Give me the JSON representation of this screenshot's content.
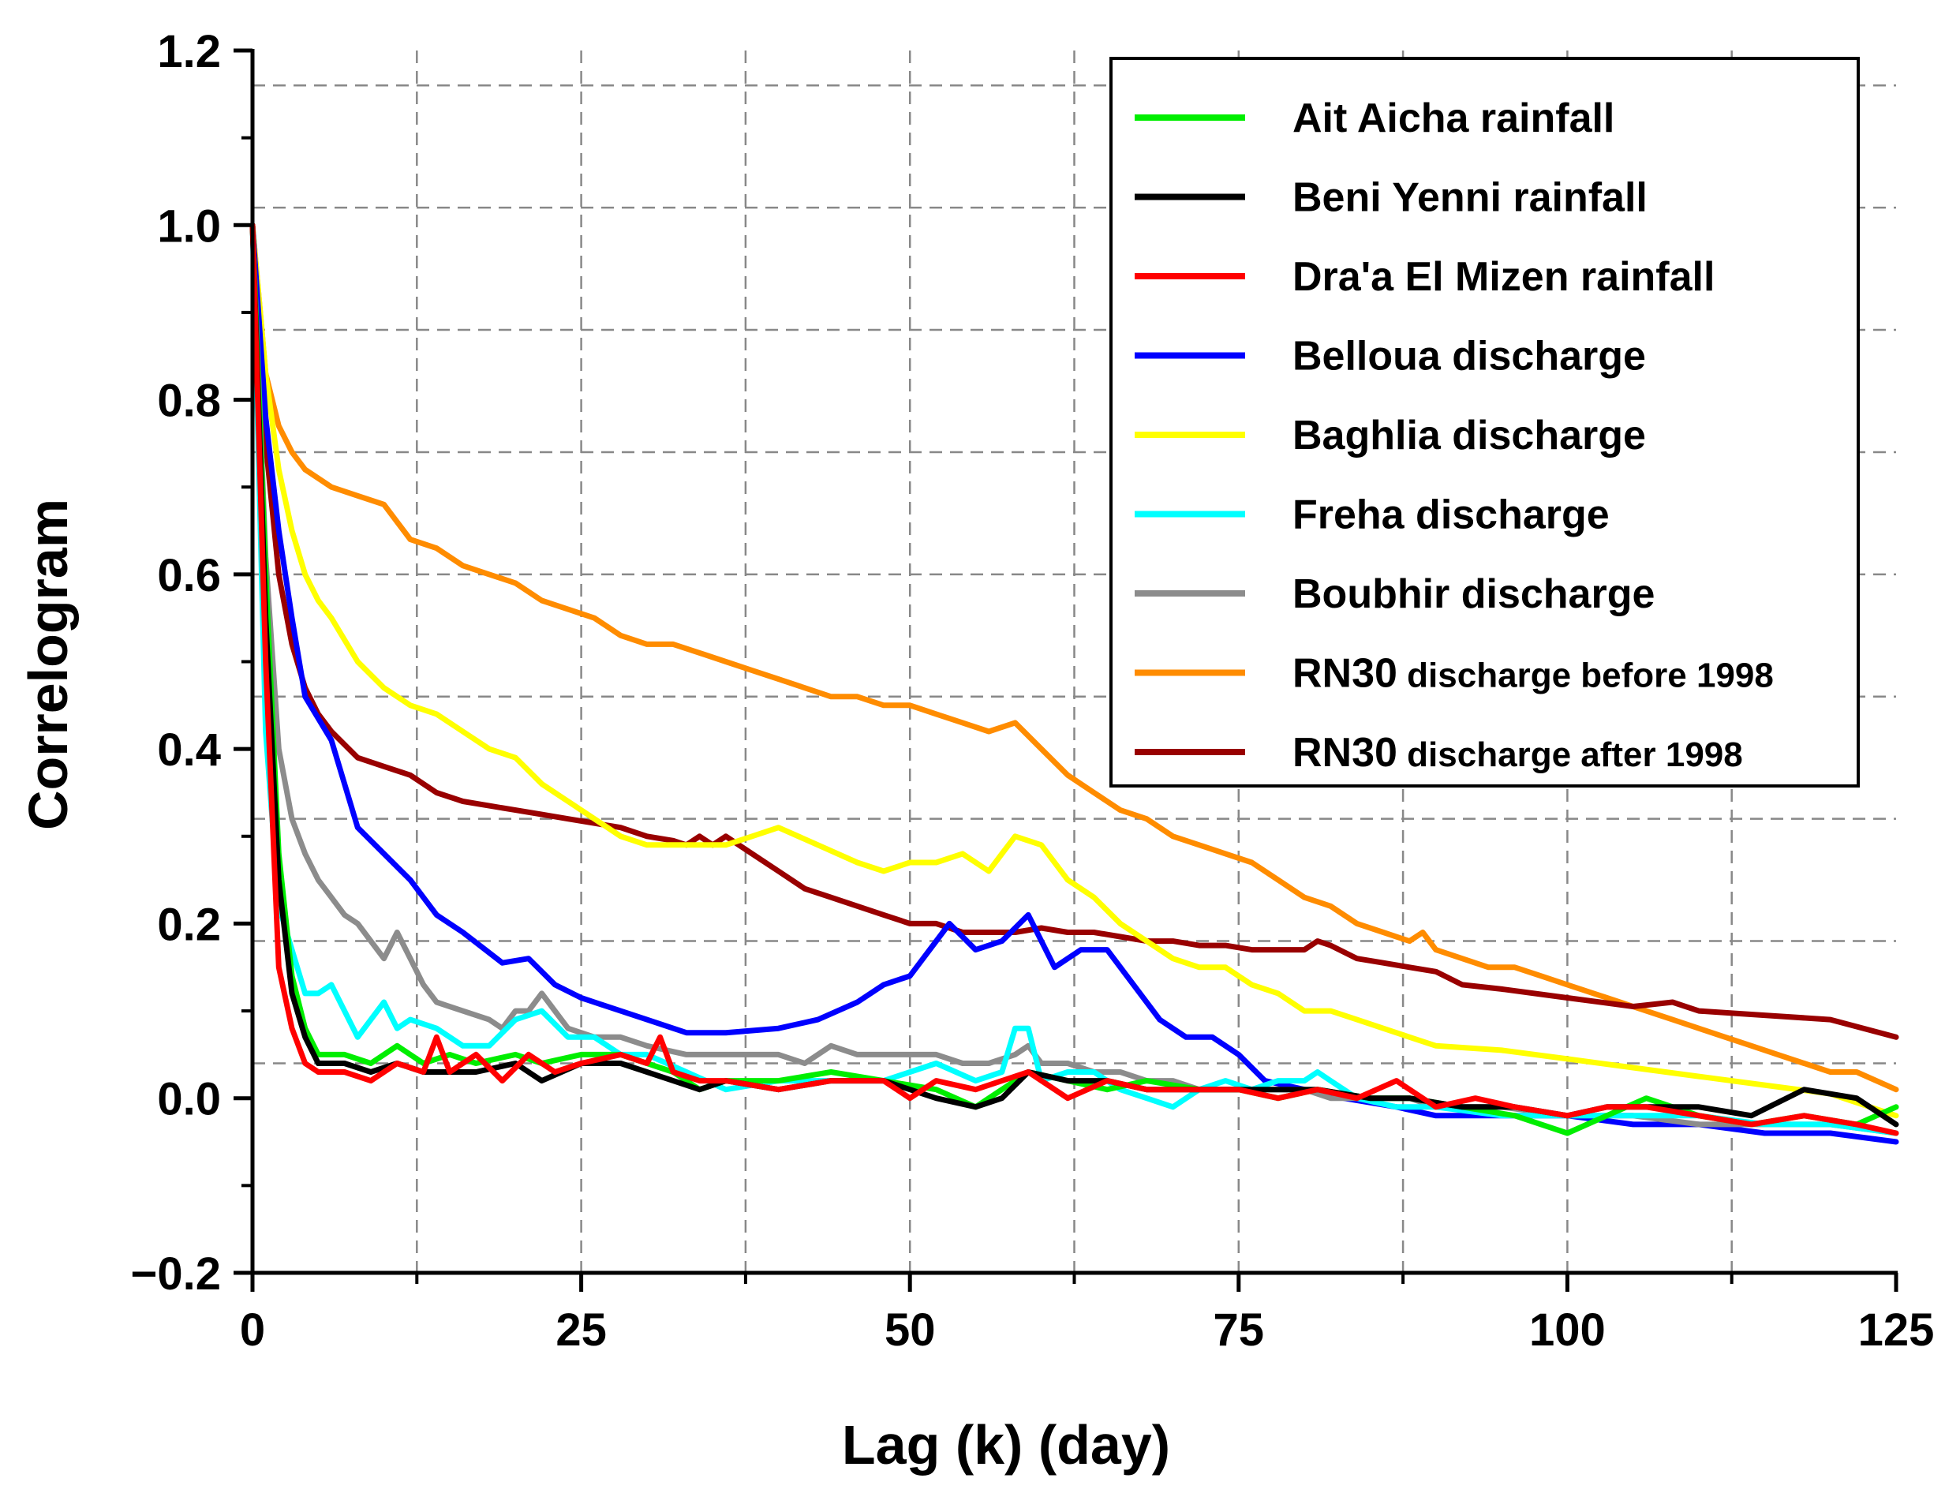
{
  "chart_data": {
    "type": "line",
    "title": "",
    "xlabel": "Lag (k) (day)",
    "ylabel": "Correlogram",
    "xlim": [
      0,
      125
    ],
    "ylim": [
      -0.2,
      1.2
    ],
    "xticks": [
      0,
      25,
      50,
      75,
      100,
      125
    ],
    "xtick_labels": [
      "0",
      "25",
      "50",
      "75",
      "100",
      "125"
    ],
    "yticks": [
      -0.2,
      0.0,
      0.2,
      0.4,
      0.6,
      0.8,
      1.0,
      1.2
    ],
    "ytick_labels": [
      "−0.2",
      "0.0",
      "0.2",
      "0.4",
      "0.6",
      "0.8",
      "1.0",
      "1.2"
    ],
    "grid": true,
    "legend_position": "top-right",
    "series": [
      {
        "name": "Ait Aicha rainfall",
        "legend_main": "Ait Aicha rainfall",
        "legend_small": "",
        "color": "#00ee00",
        "x": [
          0,
          1,
          2,
          3,
          4,
          5,
          7,
          9,
          11,
          13,
          15,
          17,
          20,
          22,
          25,
          28,
          30,
          32,
          34,
          36,
          40,
          44,
          48,
          52,
          55,
          57,
          59,
          62,
          65,
          68,
          72,
          75,
          78,
          81,
          85,
          88,
          92,
          96,
          100,
          103,
          106,
          110,
          114,
          118,
          122,
          125
        ],
        "values": [
          1.0,
          0.6,
          0.28,
          0.14,
          0.08,
          0.05,
          0.05,
          0.04,
          0.06,
          0.04,
          0.05,
          0.04,
          0.05,
          0.04,
          0.05,
          0.05,
          0.04,
          0.03,
          0.01,
          0.02,
          0.02,
          0.03,
          0.02,
          0.01,
          -0.01,
          0.01,
          0.03,
          0.02,
          0.01,
          0.02,
          0.01,
          0.01,
          0.0,
          0.01,
          0.0,
          0.0,
          -0.01,
          -0.02,
          -0.04,
          -0.02,
          0.0,
          -0.02,
          -0.03,
          -0.02,
          -0.03,
          -0.01
        ]
      },
      {
        "name": "Beni Yenni rainfall",
        "legend_main": "Beni Yenni rainfall",
        "legend_small": "",
        "color": "#000000",
        "x": [
          0,
          1,
          2,
          3,
          4,
          5,
          7,
          9,
          11,
          13,
          15,
          17,
          20,
          22,
          25,
          28,
          30,
          32,
          34,
          36,
          40,
          44,
          48,
          52,
          55,
          57,
          59,
          62,
          65,
          68,
          72,
          75,
          78,
          81,
          85,
          88,
          92,
          96,
          100,
          103,
          106,
          110,
          114,
          118,
          122,
          125
        ],
        "values": [
          1.0,
          0.55,
          0.25,
          0.12,
          0.07,
          0.04,
          0.04,
          0.03,
          0.04,
          0.03,
          0.03,
          0.03,
          0.04,
          0.02,
          0.04,
          0.04,
          0.03,
          0.02,
          0.01,
          0.02,
          0.01,
          0.02,
          0.02,
          0.0,
          -0.01,
          0.0,
          0.03,
          0.02,
          0.02,
          0.01,
          0.01,
          0.01,
          0.01,
          0.01,
          0.0,
          0.0,
          -0.01,
          -0.01,
          -0.02,
          -0.01,
          -0.01,
          -0.01,
          -0.02,
          0.01,
          0.0,
          -0.03
        ]
      },
      {
        "name": "Dra'a El Mizen rainfall",
        "legend_main": "Dra'a El Mizen rainfall",
        "legend_small": "",
        "color": "#ff0000",
        "x": [
          0,
          1,
          2,
          3,
          4,
          5,
          7,
          9,
          11,
          13,
          14,
          15,
          17,
          19,
          21,
          23,
          25,
          28,
          30,
          31,
          32,
          34,
          36,
          40,
          44,
          48,
          50,
          52,
          55,
          57,
          59,
          62,
          65,
          68,
          72,
          75,
          78,
          81,
          84,
          87,
          90,
          93,
          96,
          100,
          103,
          106,
          110,
          114,
          118,
          122,
          125
        ],
        "values": [
          1.0,
          0.5,
          0.15,
          0.08,
          0.04,
          0.03,
          0.03,
          0.02,
          0.04,
          0.03,
          0.07,
          0.03,
          0.05,
          0.02,
          0.05,
          0.03,
          0.04,
          0.05,
          0.04,
          0.07,
          0.03,
          0.02,
          0.02,
          0.01,
          0.02,
          0.02,
          0.0,
          0.02,
          0.01,
          0.02,
          0.03,
          0.0,
          0.02,
          0.01,
          0.01,
          0.01,
          0.0,
          0.01,
          0.0,
          0.02,
          -0.01,
          0.0,
          -0.01,
          -0.02,
          -0.01,
          -0.01,
          -0.02,
          -0.03,
          -0.02,
          -0.03,
          -0.04
        ]
      },
      {
        "name": "Belloua discharge",
        "legend_main": "Belloua discharge",
        "legend_small": "",
        "color": "#0000ff",
        "x": [
          0,
          1,
          2,
          3,
          4,
          6,
          8,
          10,
          12,
          14,
          16,
          19,
          21,
          23,
          25,
          28,
          30,
          33,
          36,
          40,
          43,
          46,
          48,
          50,
          52,
          53,
          55,
          57,
          59,
          61,
          63,
          65,
          67,
          69,
          71,
          73,
          75,
          77,
          80,
          83,
          87,
          90,
          95,
          100,
          105,
          110,
          115,
          120,
          125
        ],
        "values": [
          1.0,
          0.78,
          0.65,
          0.55,
          0.46,
          0.41,
          0.31,
          0.28,
          0.25,
          0.21,
          0.19,
          0.155,
          0.16,
          0.13,
          0.115,
          0.1,
          0.09,
          0.075,
          0.075,
          0.08,
          0.09,
          0.11,
          0.13,
          0.14,
          0.18,
          0.2,
          0.17,
          0.18,
          0.21,
          0.15,
          0.17,
          0.17,
          0.13,
          0.09,
          0.07,
          0.07,
          0.05,
          0.02,
          0.01,
          0.0,
          -0.01,
          -0.02,
          -0.02,
          -0.02,
          -0.03,
          -0.03,
          -0.04,
          -0.04,
          -0.05
        ]
      },
      {
        "name": "Baghlia discharge",
        "legend_main": "Baghlia discharge",
        "legend_small": "",
        "color": "#ffff00",
        "x": [
          0,
          1,
          2,
          3,
          4,
          5,
          6,
          8,
          10,
          12,
          14,
          16,
          18,
          20,
          22,
          24,
          26,
          28,
          30,
          33,
          36,
          38,
          40,
          43,
          46,
          48,
          50,
          52,
          54,
          56,
          57,
          58,
          60,
          62,
          64,
          66,
          68,
          70,
          72,
          74,
          76,
          78,
          80,
          82,
          84,
          86,
          88,
          90,
          95,
          100,
          105,
          110,
          115,
          120,
          125
        ],
        "values": [
          1.0,
          0.83,
          0.72,
          0.65,
          0.6,
          0.57,
          0.55,
          0.5,
          0.47,
          0.45,
          0.44,
          0.42,
          0.4,
          0.39,
          0.36,
          0.34,
          0.32,
          0.3,
          0.29,
          0.29,
          0.29,
          0.3,
          0.31,
          0.29,
          0.27,
          0.26,
          0.27,
          0.27,
          0.28,
          0.26,
          0.28,
          0.3,
          0.29,
          0.25,
          0.23,
          0.2,
          0.18,
          0.16,
          0.15,
          0.15,
          0.13,
          0.12,
          0.1,
          0.1,
          0.09,
          0.08,
          0.07,
          0.06,
          0.055,
          0.045,
          0.035,
          0.025,
          0.015,
          0.005,
          -0.02
        ]
      },
      {
        "name": "Freha discharge",
        "legend_main": "Freha discharge",
        "legend_small": "",
        "color": "#00ffff",
        "x": [
          0,
          1,
          2,
          3,
          4,
          5,
          6,
          7,
          8,
          10,
          11,
          12,
          14,
          16,
          18,
          20,
          22,
          24,
          26,
          28,
          30,
          33,
          36,
          40,
          44,
          48,
          52,
          55,
          57,
          58,
          59,
          60,
          62,
          64,
          66,
          68,
          70,
          72,
          74,
          76,
          78,
          80,
          81,
          82,
          84,
          87,
          90,
          95,
          100,
          105,
          110,
          115,
          120,
          125
        ],
        "values": [
          1.0,
          0.42,
          0.22,
          0.17,
          0.12,
          0.12,
          0.13,
          0.1,
          0.07,
          0.11,
          0.08,
          0.09,
          0.08,
          0.06,
          0.06,
          0.09,
          0.1,
          0.07,
          0.07,
          0.05,
          0.05,
          0.03,
          0.01,
          0.02,
          0.02,
          0.02,
          0.04,
          0.02,
          0.03,
          0.08,
          0.08,
          0.02,
          0.03,
          0.03,
          0.01,
          0.0,
          -0.01,
          0.01,
          0.02,
          0.01,
          0.02,
          0.02,
          0.03,
          0.02,
          0.0,
          -0.01,
          -0.01,
          -0.02,
          -0.02,
          -0.02,
          -0.02,
          -0.03,
          -0.03,
          -0.04
        ]
      },
      {
        "name": "Boubhir discharge",
        "legend_main": "Boubhir discharge",
        "legend_small": "",
        "color": "#8c8c8c",
        "x": [
          0,
          1,
          2,
          3,
          4,
          5,
          6,
          7,
          8,
          9,
          10,
          11,
          12,
          13,
          14,
          16,
          18,
          19,
          20,
          21,
          22,
          23,
          24,
          26,
          28,
          30,
          33,
          36,
          40,
          42,
          44,
          46,
          48,
          50,
          52,
          54,
          56,
          58,
          59,
          60,
          62,
          64,
          66,
          68,
          70,
          72,
          75,
          78,
          80,
          82,
          85,
          88,
          90,
          95,
          100,
          105,
          110,
          115,
          120,
          125
        ],
        "values": [
          1.0,
          0.62,
          0.4,
          0.32,
          0.28,
          0.25,
          0.23,
          0.21,
          0.2,
          0.18,
          0.16,
          0.19,
          0.16,
          0.13,
          0.11,
          0.1,
          0.09,
          0.08,
          0.1,
          0.1,
          0.12,
          0.1,
          0.08,
          0.07,
          0.07,
          0.06,
          0.05,
          0.05,
          0.05,
          0.04,
          0.06,
          0.05,
          0.05,
          0.05,
          0.05,
          0.04,
          0.04,
          0.05,
          0.06,
          0.04,
          0.04,
          0.03,
          0.03,
          0.02,
          0.02,
          0.01,
          0.01,
          0.01,
          0.01,
          0.0,
          0.0,
          0.0,
          -0.01,
          -0.01,
          -0.02,
          -0.02,
          -0.03,
          -0.03,
          -0.03,
          -0.04
        ]
      },
      {
        "name": "RN30 discharge before 1998",
        "legend_main": "RN30",
        "legend_small": "discharge before 1998",
        "color": "#ff8c00",
        "x": [
          0,
          1,
          2,
          3,
          4,
          5,
          6,
          8,
          10,
          12,
          14,
          16,
          18,
          20,
          22,
          24,
          26,
          28,
          30,
          32,
          34,
          36,
          38,
          40,
          42,
          44,
          46,
          48,
          50,
          52,
          54,
          56,
          58,
          60,
          62,
          64,
          66,
          68,
          70,
          72,
          74,
          76,
          78,
          80,
          82,
          84,
          86,
          88,
          89,
          90,
          92,
          94,
          96,
          98,
          100,
          102,
          104,
          106,
          108,
          110,
          112,
          114,
          116,
          118,
          120,
          122,
          125
        ],
        "values": [
          1.0,
          0.83,
          0.77,
          0.74,
          0.72,
          0.71,
          0.7,
          0.69,
          0.68,
          0.64,
          0.63,
          0.61,
          0.6,
          0.59,
          0.57,
          0.56,
          0.55,
          0.53,
          0.52,
          0.52,
          0.51,
          0.5,
          0.49,
          0.48,
          0.47,
          0.46,
          0.46,
          0.45,
          0.45,
          0.44,
          0.43,
          0.42,
          0.43,
          0.4,
          0.37,
          0.35,
          0.33,
          0.32,
          0.3,
          0.29,
          0.28,
          0.27,
          0.25,
          0.23,
          0.22,
          0.2,
          0.19,
          0.18,
          0.19,
          0.17,
          0.16,
          0.15,
          0.15,
          0.14,
          0.13,
          0.12,
          0.11,
          0.1,
          0.09,
          0.08,
          0.07,
          0.06,
          0.05,
          0.04,
          0.03,
          0.03,
          0.01
        ]
      },
      {
        "name": "RN30 discharge after 1998",
        "legend_main": "RN30",
        "legend_small": "discharge after 1998",
        "color": "#990000",
        "x": [
          0,
          1,
          2,
          3,
          4,
          5,
          6,
          8,
          10,
          12,
          14,
          16,
          18,
          20,
          22,
          24,
          26,
          28,
          30,
          32,
          33,
          34,
          35,
          36,
          38,
          40,
          42,
          44,
          46,
          48,
          50,
          52,
          54,
          56,
          58,
          60,
          62,
          64,
          66,
          68,
          70,
          72,
          74,
          76,
          78,
          80,
          81,
          82,
          84,
          86,
          88,
          90,
          92,
          95,
          100,
          105,
          108,
          110,
          115,
          120,
          125
        ],
        "values": [
          1.0,
          0.75,
          0.6,
          0.52,
          0.47,
          0.44,
          0.42,
          0.39,
          0.38,
          0.37,
          0.35,
          0.34,
          0.335,
          0.33,
          0.325,
          0.32,
          0.315,
          0.31,
          0.3,
          0.295,
          0.29,
          0.3,
          0.29,
          0.3,
          0.28,
          0.26,
          0.24,
          0.23,
          0.22,
          0.21,
          0.2,
          0.2,
          0.19,
          0.19,
          0.19,
          0.195,
          0.19,
          0.19,
          0.185,
          0.18,
          0.18,
          0.175,
          0.175,
          0.17,
          0.17,
          0.17,
          0.18,
          0.175,
          0.16,
          0.155,
          0.15,
          0.145,
          0.13,
          0.125,
          0.115,
          0.105,
          0.11,
          0.1,
          0.095,
          0.09,
          0.07
        ]
      }
    ]
  }
}
